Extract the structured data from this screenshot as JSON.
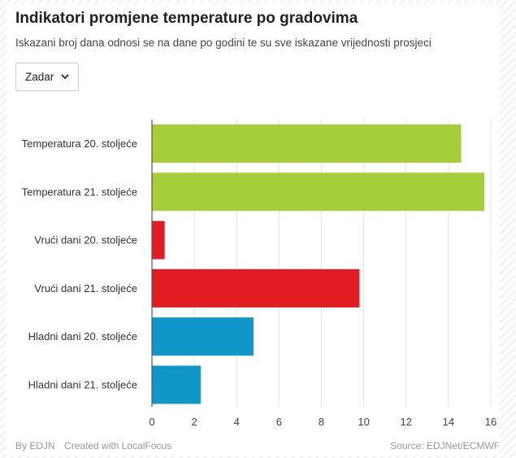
{
  "title": "Indikatori promjene temperature po gradovima",
  "subtitle": "Iskazani broj dana odnosi se na dane po godini te su sve iskazane vrijednosti prosjeci",
  "dropdown": {
    "selected": "Zadar"
  },
  "chart_data": {
    "type": "bar",
    "orientation": "horizontal",
    "categories": [
      "Temperatura 20. stoljeće",
      "Temperatura 21. stoljeće",
      "Vrući dani 20. stoljeće",
      "Vrući dani 21. stoljeće",
      "Hladni dani 20. stoljeće",
      "Hladni dani 21. stoljeće"
    ],
    "values": [
      14.6,
      15.7,
      0.6,
      9.8,
      4.8,
      2.3
    ],
    "colors": [
      "#a6ce39",
      "#a6ce39",
      "#e31b23",
      "#e31b23",
      "#0e97c8",
      "#0e97c8"
    ],
    "xlim": [
      0,
      16
    ],
    "xticks": [
      "0",
      "2",
      "4",
      "6",
      "8",
      "10",
      "12",
      "14",
      "16"
    ],
    "grid": true
  },
  "footer": {
    "by": "By EDJN",
    "created": "Created with LocalFocus",
    "source": "Source: EDJNet/ECMWF"
  }
}
